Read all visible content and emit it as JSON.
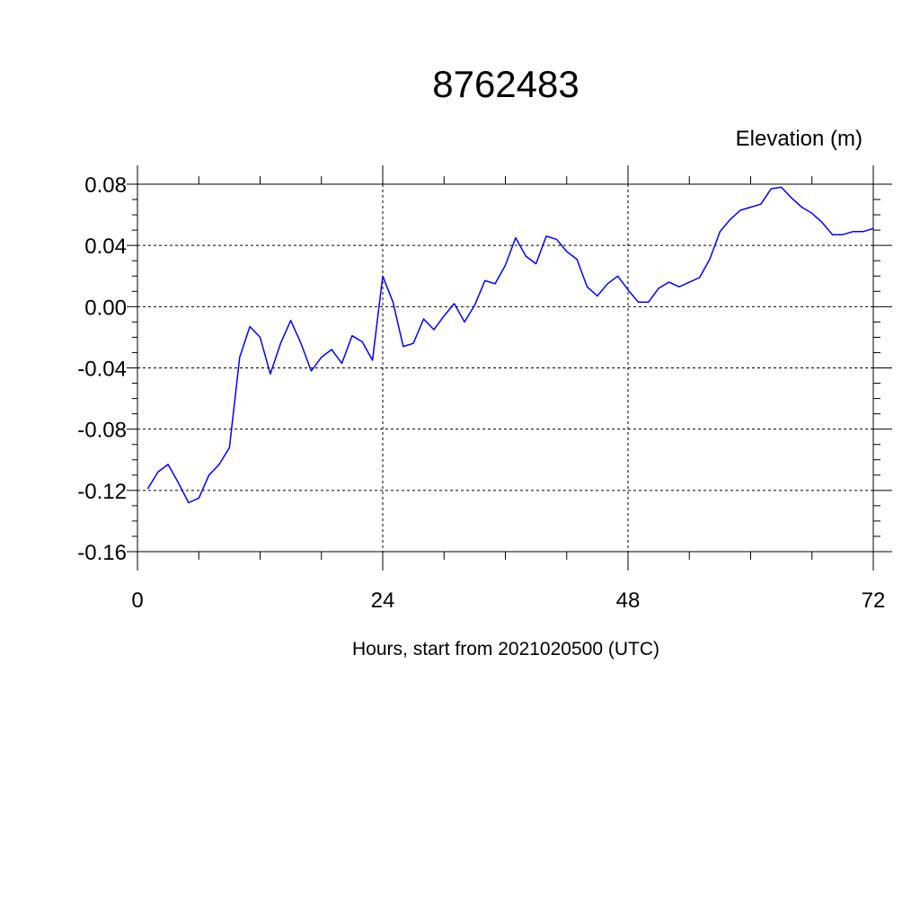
{
  "chart_data": {
    "type": "line",
    "title": "8762483",
    "ylabel": "Elevation (m)",
    "xlabel": "Hours, start from 2021020500 (UTC)",
    "xlim": [
      0,
      72
    ],
    "ylim": [
      -0.16,
      0.08
    ],
    "x_ticks": [
      0,
      24,
      48,
      72
    ],
    "x_tick_labels": [
      "0",
      "24",
      "48",
      "72"
    ],
    "y_ticks": [
      0.08,
      0.04,
      0.0,
      -0.04,
      -0.08,
      -0.12,
      -0.16
    ],
    "y_tick_labels": [
      "0.08",
      "0.04",
      "0.00",
      "-0.04",
      "-0.08",
      "-0.12",
      "-0.16"
    ],
    "grid": true,
    "line_color": "#0000ff",
    "series": [
      {
        "x": [
          1,
          2,
          3,
          4,
          5,
          6,
          7,
          8,
          9,
          10,
          11,
          12,
          13,
          14,
          15,
          16,
          17,
          18,
          19,
          20,
          21,
          22,
          23,
          24,
          25,
          26,
          27,
          28,
          29,
          30,
          31,
          32,
          33,
          34,
          35,
          36,
          37,
          38,
          39,
          40,
          41,
          42,
          43,
          44,
          45,
          46,
          47,
          48,
          49,
          50,
          51,
          52,
          53,
          54,
          55,
          56,
          57,
          58,
          59,
          60,
          61,
          62,
          63,
          64,
          65,
          66,
          67,
          68,
          69,
          70,
          71,
          72
        ],
        "values": [
          -0.119,
          -0.108,
          -0.103,
          -0.115,
          -0.128,
          -0.125,
          -0.11,
          -0.103,
          -0.092,
          -0.033,
          -0.013,
          -0.02,
          -0.044,
          -0.024,
          -0.009,
          -0.024,
          -0.042,
          -0.033,
          -0.028,
          -0.037,
          -0.019,
          -0.023,
          -0.035,
          0.02,
          0.003,
          -0.026,
          -0.024,
          -0.008,
          -0.015,
          -0.006,
          0.002,
          -0.01,
          0.001,
          0.017,
          0.015,
          0.027,
          0.045,
          0.033,
          0.028,
          0.046,
          0.044,
          0.036,
          0.031,
          0.013,
          0.007,
          0.015,
          0.02,
          0.011,
          0.003,
          0.003,
          0.012,
          0.016,
          0.013,
          0.016,
          0.019,
          0.031,
          0.049,
          0.057,
          0.063,
          0.065,
          0.067,
          0.077,
          0.078,
          0.071,
          0.065,
          0.061,
          0.055,
          0.047,
          0.047,
          0.049,
          0.049,
          0.051
        ]
      }
    ]
  }
}
